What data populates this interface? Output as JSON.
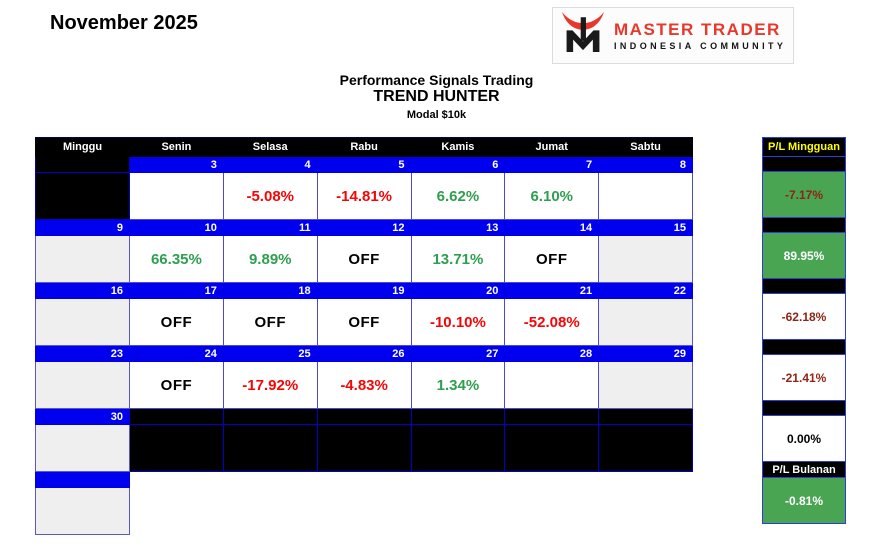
{
  "page": {
    "month_title": "November 2025"
  },
  "logo": {
    "name": "MASTER TRADER",
    "subtitle": "INDONESIA COMMUNITY",
    "icon": "bull-horns-monogram-m"
  },
  "header": {
    "line1": "Performance Signals Trading",
    "line2": "TREND HUNTER",
    "line3": "Modal $10k"
  },
  "colors": {
    "date_row_blue": "#0000ee",
    "gain_green_text": "#2f9e4f",
    "loss_red_text": "#f50505",
    "panel_green_bg": "#4aa553",
    "panel_dark_red_text": "#8e2418",
    "weekly_header_yellow": "#ffff00",
    "brand_red": "#e6392b"
  },
  "calendar": {
    "day_headers": [
      "Minggu",
      "Senin",
      "Selasa",
      "Rabu",
      "Kamis",
      "Jumat",
      "Sabtu"
    ],
    "weeks": [
      {
        "dates": [
          "",
          "3",
          "4",
          "5",
          "6",
          "7",
          "8"
        ],
        "date_styles": [
          "black",
          "blue",
          "blue",
          "blue",
          "blue",
          "blue",
          "blue"
        ],
        "cells": [
          {
            "text": "",
            "style": "black",
            "tone": ""
          },
          {
            "text": "",
            "style": "white",
            "tone": ""
          },
          {
            "text": "-5.08%",
            "style": "white",
            "tone": "loss"
          },
          {
            "text": "-14.81%",
            "style": "white",
            "tone": "loss"
          },
          {
            "text": "6.62%",
            "style": "white",
            "tone": "gain"
          },
          {
            "text": "6.10%",
            "style": "white",
            "tone": "gain"
          },
          {
            "text": "",
            "style": "white",
            "tone": ""
          }
        ]
      },
      {
        "dates": [
          "9",
          "10",
          "11",
          "12",
          "13",
          "14",
          "15"
        ],
        "date_styles": [
          "blue",
          "blue",
          "blue",
          "blue",
          "blue",
          "blue",
          "blue"
        ],
        "cells": [
          {
            "text": "",
            "style": "gray",
            "tone": ""
          },
          {
            "text": "66.35%",
            "style": "white",
            "tone": "gain"
          },
          {
            "text": "9.89%",
            "style": "white",
            "tone": "gain"
          },
          {
            "text": "OFF",
            "style": "white",
            "tone": "off"
          },
          {
            "text": "13.71%",
            "style": "white",
            "tone": "gain"
          },
          {
            "text": "OFF",
            "style": "white",
            "tone": "off"
          },
          {
            "text": "",
            "style": "gray",
            "tone": ""
          }
        ]
      },
      {
        "dates": [
          "16",
          "17",
          "18",
          "19",
          "20",
          "21",
          "22"
        ],
        "date_styles": [
          "blue",
          "blue",
          "blue",
          "blue",
          "blue",
          "blue",
          "blue"
        ],
        "cells": [
          {
            "text": "",
            "style": "gray",
            "tone": ""
          },
          {
            "text": "OFF",
            "style": "white",
            "tone": "off"
          },
          {
            "text": "OFF",
            "style": "white",
            "tone": "off"
          },
          {
            "text": "OFF",
            "style": "white",
            "tone": "off"
          },
          {
            "text": "-10.10%",
            "style": "white",
            "tone": "loss"
          },
          {
            "text": "-52.08%",
            "style": "white",
            "tone": "loss"
          },
          {
            "text": "",
            "style": "gray",
            "tone": ""
          }
        ]
      },
      {
        "dates": [
          "23",
          "24",
          "25",
          "26",
          "27",
          "28",
          "29"
        ],
        "date_styles": [
          "blue",
          "blue",
          "blue",
          "blue",
          "blue",
          "blue",
          "blue"
        ],
        "cells": [
          {
            "text": "",
            "style": "gray",
            "tone": ""
          },
          {
            "text": "OFF",
            "style": "white",
            "tone": "off"
          },
          {
            "text": "-17.92%",
            "style": "white",
            "tone": "loss"
          },
          {
            "text": "-4.83%",
            "style": "white",
            "tone": "loss"
          },
          {
            "text": "1.34%",
            "style": "white",
            "tone": "gain"
          },
          {
            "text": "",
            "style": "white",
            "tone": ""
          },
          {
            "text": "",
            "style": "gray",
            "tone": ""
          }
        ]
      },
      {
        "dates": [
          "30",
          "",
          "",
          "",
          "",
          "",
          ""
        ],
        "date_styles": [
          "blue",
          "black",
          "black",
          "black",
          "black",
          "black",
          "black"
        ],
        "cells": [
          {
            "text": "",
            "style": "gray",
            "tone": ""
          },
          {
            "text": "",
            "style": "black",
            "tone": ""
          },
          {
            "text": "",
            "style": "black",
            "tone": ""
          },
          {
            "text": "",
            "style": "black",
            "tone": ""
          },
          {
            "text": "",
            "style": "black",
            "tone": ""
          },
          {
            "text": "",
            "style": "black",
            "tone": ""
          },
          {
            "text": "",
            "style": "black",
            "tone": ""
          }
        ]
      },
      {
        "dates": [
          "",
          "",
          "",
          "",
          "",
          "",
          ""
        ],
        "date_styles": [
          "blue",
          "none",
          "none",
          "none",
          "none",
          "none",
          "none"
        ],
        "cells": [
          {
            "text": "",
            "style": "gray",
            "tone": ""
          },
          {
            "text": "",
            "style": "none",
            "tone": ""
          },
          {
            "text": "",
            "style": "none",
            "tone": ""
          },
          {
            "text": "",
            "style": "none",
            "tone": ""
          },
          {
            "text": "",
            "style": "none",
            "tone": ""
          },
          {
            "text": "",
            "style": "none",
            "tone": ""
          },
          {
            "text": "",
            "style": "none",
            "tone": ""
          }
        ]
      }
    ]
  },
  "sidebar": {
    "weekly_header": "P/L Mingguan",
    "weekly_values": [
      {
        "text": "-7.17%",
        "bg": "green",
        "tone": "darkred"
      },
      {
        "text": "89.95%",
        "bg": "green",
        "tone": "white"
      },
      {
        "text": "-62.18%",
        "bg": "white",
        "tone": "darkred"
      },
      {
        "text": "-21.41%",
        "bg": "white",
        "tone": "darkred"
      },
      {
        "text": "0.00%",
        "bg": "white",
        "tone": "black"
      }
    ],
    "monthly_header": "P/L Bulanan",
    "monthly_value": {
      "text": "-0.81%",
      "bg": "green",
      "tone": "white"
    }
  }
}
